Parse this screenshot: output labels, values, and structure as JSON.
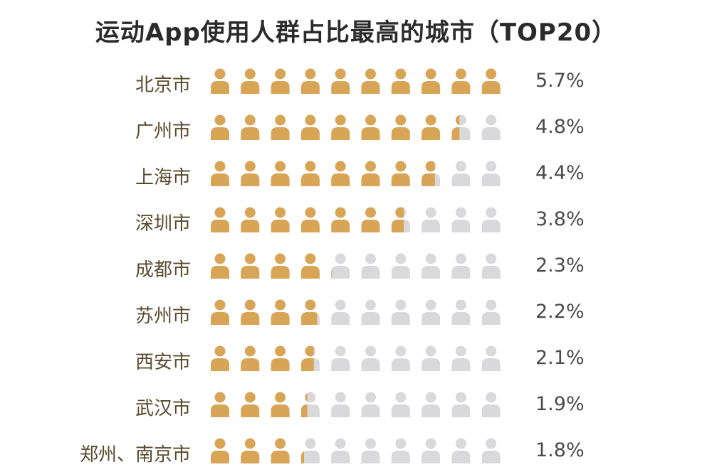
{
  "title": "运动App使用人群占比最高的城市（TOP20）",
  "colors": {
    "filled": "#D8A455",
    "empty": "#D9D9DC",
    "text": "#2b2b2b"
  },
  "icon": "person-icon",
  "chart_data": {
    "type": "pictograph",
    "icons_per_row": 10,
    "unit": "%",
    "scale_max": 5.7,
    "categories": [
      "北京市",
      "广州市",
      "上海市",
      "深圳市",
      "成都市",
      "苏州市",
      "西安市",
      "武汉市",
      "郑州、南京市"
    ],
    "values": [
      5.7,
      4.8,
      4.4,
      3.8,
      2.3,
      2.2,
      2.1,
      1.9,
      1.8
    ],
    "labels": [
      "5.7%",
      "4.8%",
      "4.4%",
      "3.8%",
      "2.3%",
      "2.2%",
      "2.1%",
      "1.9%",
      "1.8%"
    ]
  }
}
